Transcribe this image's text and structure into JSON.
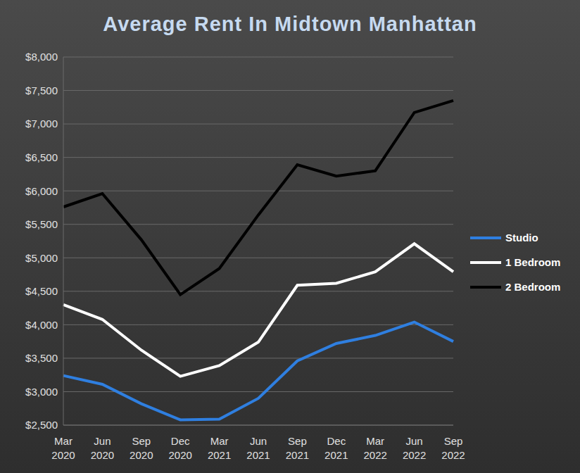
{
  "chart_data": {
    "type": "line",
    "title": "Average Rent In Midtown Manhattan",
    "categories": [
      "Mar 2020",
      "Jun 2020",
      "Sep 2020",
      "Dec 2020",
      "Mar 2021",
      "Jun 2021",
      "Sep 2021",
      "Dec 2021",
      "Mar 2022",
      "Jun 2022",
      "Sep 2022"
    ],
    "series": [
      {
        "name": "Studio",
        "color": "#2f7fe0",
        "values": [
          3240,
          3110,
          2820,
          2580,
          2590,
          2900,
          3460,
          3720,
          3840,
          4040,
          3750
        ]
      },
      {
        "name": "1 Bedroom",
        "color": "#ffffff",
        "values": [
          4300,
          4080,
          3620,
          3230,
          3390,
          3740,
          4590,
          4620,
          4790,
          5210,
          4790
        ]
      },
      {
        "name": "2 Bedroom",
        "color": "#000000",
        "values": [
          5760,
          5960,
          5270,
          4450,
          4840,
          5640,
          6390,
          6220,
          6300,
          7170,
          7350
        ]
      }
    ],
    "ylim": [
      2500,
      8000
    ],
    "yticks": [
      {
        "value": 2500,
        "label": "$2,500"
      },
      {
        "value": 3000,
        "label": "$3,000"
      },
      {
        "value": 3500,
        "label": "$3,500"
      },
      {
        "value": 4000,
        "label": "$4,000"
      },
      {
        "value": 4500,
        "label": "$4,500"
      },
      {
        "value": 5000,
        "label": "$5,000"
      },
      {
        "value": 5500,
        "label": "$5,500"
      },
      {
        "value": 6000,
        "label": "$6,000"
      },
      {
        "value": 6500,
        "label": "$6,500"
      },
      {
        "value": 7000,
        "label": "$7,000"
      },
      {
        "value": 7500,
        "label": "$7,500"
      },
      {
        "value": 8000,
        "label": "$8,000"
      }
    ],
    "grid": true,
    "legend": "right"
  }
}
